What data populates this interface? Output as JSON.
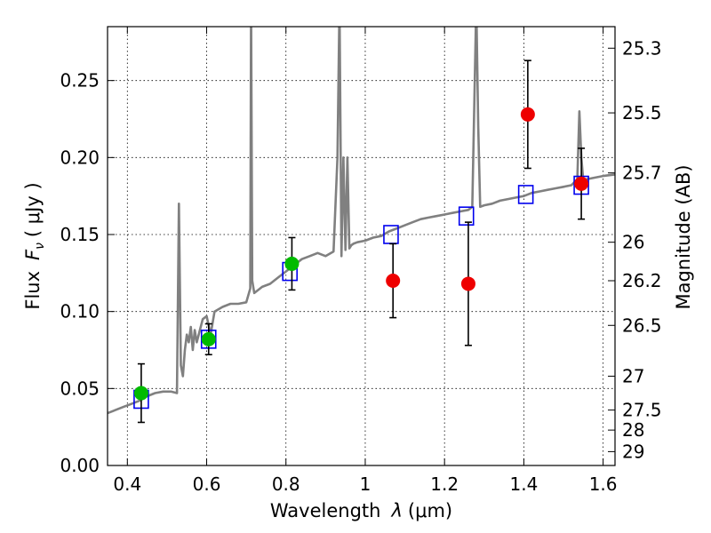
{
  "chart_data": {
    "type": "scatter",
    "title": "",
    "xlabel_prefix": "Wavelength",
    "xlabel_symbol": "λ",
    "xlabel_unit": "(μm)",
    "ylabel_prefix": "Flux",
    "ylabel_symbol": "F",
    "ylabel_sub": "ν",
    "ylabel_unit": "( μJy )",
    "y2label": "Magnitude (AB)",
    "xlim": [
      0.35,
      1.63
    ],
    "ylim": [
      0.0,
      0.285
    ],
    "xticks": [
      0.4,
      0.6,
      0.8,
      1.0,
      1.2,
      1.4,
      1.6
    ],
    "xtick_labels": [
      "0.4",
      "0.6",
      "0.8",
      "1",
      "1.2",
      "1.4",
      "1.6"
    ],
    "yticks": [
      0.0,
      0.05,
      0.1,
      0.15,
      0.2,
      0.25
    ],
    "ytick_labels": [
      "0.00",
      "0.05",
      "0.10",
      "0.15",
      "0.20",
      "0.25"
    ],
    "mag_ticks": [
      {
        "label": "25.3",
        "value": 0.271
      },
      {
        "label": "25.5",
        "value": 0.229
      },
      {
        "label": "25.7",
        "value": 0.19
      },
      {
        "label": "26",
        "value": 0.145
      },
      {
        "label": "26.2",
        "value": 0.12
      },
      {
        "label": "26.5",
        "value": 0.091
      },
      {
        "label": "27",
        "value": 0.058
      },
      {
        "label": "27.5",
        "value": 0.036
      },
      {
        "label": "28",
        "value": 0.023
      },
      {
        "label": "29",
        "value": 0.009
      }
    ],
    "grid": true,
    "colors": {
      "sed": "#808080",
      "model_box": "#0000ee",
      "green": "#00bb00",
      "red": "#ee0000",
      "errorbar": "#000000"
    },
    "series": [
      {
        "name": "SED model template",
        "kind": "line",
        "x": [
          0.35,
          0.37,
          0.39,
          0.41,
          0.43,
          0.45,
          0.47,
          0.49,
          0.51,
          0.525,
          0.53,
          0.535,
          0.54,
          0.545,
          0.55,
          0.555,
          0.56,
          0.565,
          0.57,
          0.575,
          0.58,
          0.59,
          0.6,
          0.61,
          0.62,
          0.64,
          0.66,
          0.68,
          0.7,
          0.71,
          0.712,
          0.715,
          0.72,
          0.74,
          0.76,
          0.78,
          0.8,
          0.82,
          0.84,
          0.86,
          0.88,
          0.9,
          0.92,
          0.93,
          0.935,
          0.94,
          0.945,
          0.95,
          0.955,
          0.96,
          0.965,
          0.97,
          0.98,
          1.0,
          1.02,
          1.04,
          1.06,
          1.08,
          1.1,
          1.12,
          1.14,
          1.16,
          1.18,
          1.2,
          1.22,
          1.24,
          1.26,
          1.27,
          1.28,
          1.285,
          1.29,
          1.3,
          1.32,
          1.34,
          1.36,
          1.38,
          1.4,
          1.42,
          1.44,
          1.46,
          1.48,
          1.5,
          1.52,
          1.535,
          1.54,
          1.545,
          1.55,
          1.56,
          1.58,
          1.6,
          1.63
        ],
        "y": [
          0.034,
          0.036,
          0.038,
          0.04,
          0.042,
          0.045,
          0.047,
          0.048,
          0.048,
          0.047,
          0.17,
          0.065,
          0.058,
          0.075,
          0.085,
          0.08,
          0.09,
          0.075,
          0.088,
          0.08,
          0.085,
          0.095,
          0.097,
          0.085,
          0.1,
          0.103,
          0.105,
          0.105,
          0.106,
          0.115,
          0.3,
          0.12,
          0.112,
          0.116,
          0.118,
          0.122,
          0.126,
          0.13,
          0.134,
          0.136,
          0.138,
          0.136,
          0.139,
          0.2,
          0.3,
          0.136,
          0.2,
          0.14,
          0.2,
          0.141,
          0.143,
          0.144,
          0.145,
          0.146,
          0.148,
          0.149,
          0.152,
          0.154,
          0.156,
          0.158,
          0.16,
          0.161,
          0.162,
          0.163,
          0.164,
          0.165,
          0.166,
          0.168,
          0.3,
          0.22,
          0.168,
          0.169,
          0.17,
          0.172,
          0.173,
          0.174,
          0.175,
          0.177,
          0.178,
          0.179,
          0.18,
          0.181,
          0.182,
          0.186,
          0.23,
          0.2,
          0.185,
          0.186,
          0.187,
          0.188,
          0.189
        ]
      },
      {
        "name": "Model photometry",
        "kind": "box",
        "x": [
          0.435,
          0.605,
          0.81,
          1.065,
          1.255,
          1.405,
          1.545
        ],
        "y": [
          0.043,
          0.082,
          0.126,
          0.15,
          0.162,
          0.176,
          0.182
        ]
      },
      {
        "name": "Observed (green)",
        "kind": "point",
        "x": [
          0.435,
          0.605,
          0.815
        ],
        "y": [
          0.047,
          0.082,
          0.131
        ],
        "yerr": [
          0.019,
          0.01,
          0.017
        ]
      },
      {
        "name": "Observed (red)",
        "kind": "point",
        "x": [
          1.07,
          1.26,
          1.41,
          1.545
        ],
        "y": [
          0.12,
          0.118,
          0.228,
          0.183
        ],
        "yerr": [
          0.024,
          0.04,
          0.035,
          0.023
        ]
      }
    ]
  }
}
